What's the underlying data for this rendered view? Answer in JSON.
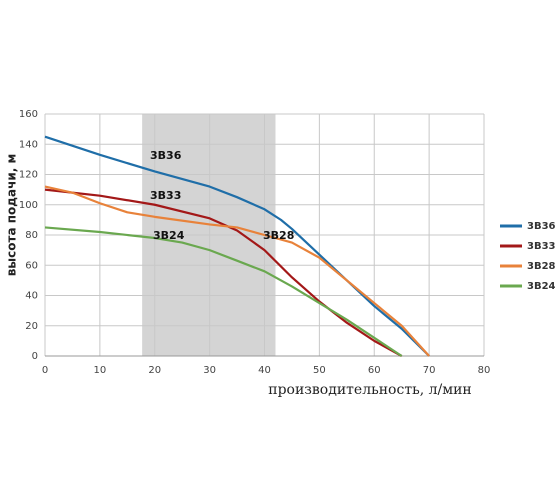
{
  "chart_data": {
    "type": "line",
    "x_label": "производительность, л/мин",
    "y_label": "высота подачи, м",
    "xlim": [
      0,
      80
    ],
    "xticks": [
      0,
      10,
      20,
      30,
      40,
      50,
      60,
      70,
      80
    ],
    "ylim": [
      0,
      160
    ],
    "yticks": [
      0,
      20,
      40,
      60,
      80,
      100,
      120,
      140,
      160
    ],
    "grid": true,
    "legend": "right",
    "highlight": {
      "x": [
        17.7,
        42
      ],
      "color": "#d4d4d4"
    },
    "series": [
      {
        "name": "3В36",
        "color": "#1f6ea8",
        "x": [
          0,
          10,
          20,
          30,
          35,
          40,
          43,
          45,
          50,
          55,
          60,
          65,
          70
        ],
        "values": [
          145,
          133,
          122,
          112,
          105,
          97,
          90,
          84,
          67,
          50,
          33,
          18,
          0
        ]
      },
      {
        "name": "3В33",
        "color": "#a31818",
        "x": [
          0,
          10,
          20,
          30,
          35,
          40,
          45,
          50,
          55,
          60,
          65
        ],
        "values": [
          110,
          106,
          100,
          91,
          83,
          70,
          52,
          36,
          22,
          10,
          0
        ]
      },
      {
        "name": "3В28",
        "color": "#e8823a",
        "x": [
          0,
          5,
          10,
          15,
          20,
          30,
          35,
          40,
          45,
          50,
          55,
          60,
          65,
          70
        ],
        "values": [
          112,
          108,
          101,
          95,
          92,
          87,
          85,
          80,
          75,
          65,
          50,
          35,
          20,
          0
        ]
      },
      {
        "name": "3В24",
        "color": "#6aa84f",
        "x": [
          0,
          10,
          20,
          25,
          30,
          35,
          40,
          45,
          50,
          55,
          60,
          65
        ],
        "values": [
          85,
          82,
          78,
          75,
          70,
          63,
          56,
          46,
          35,
          24,
          12,
          0
        ]
      }
    ]
  }
}
